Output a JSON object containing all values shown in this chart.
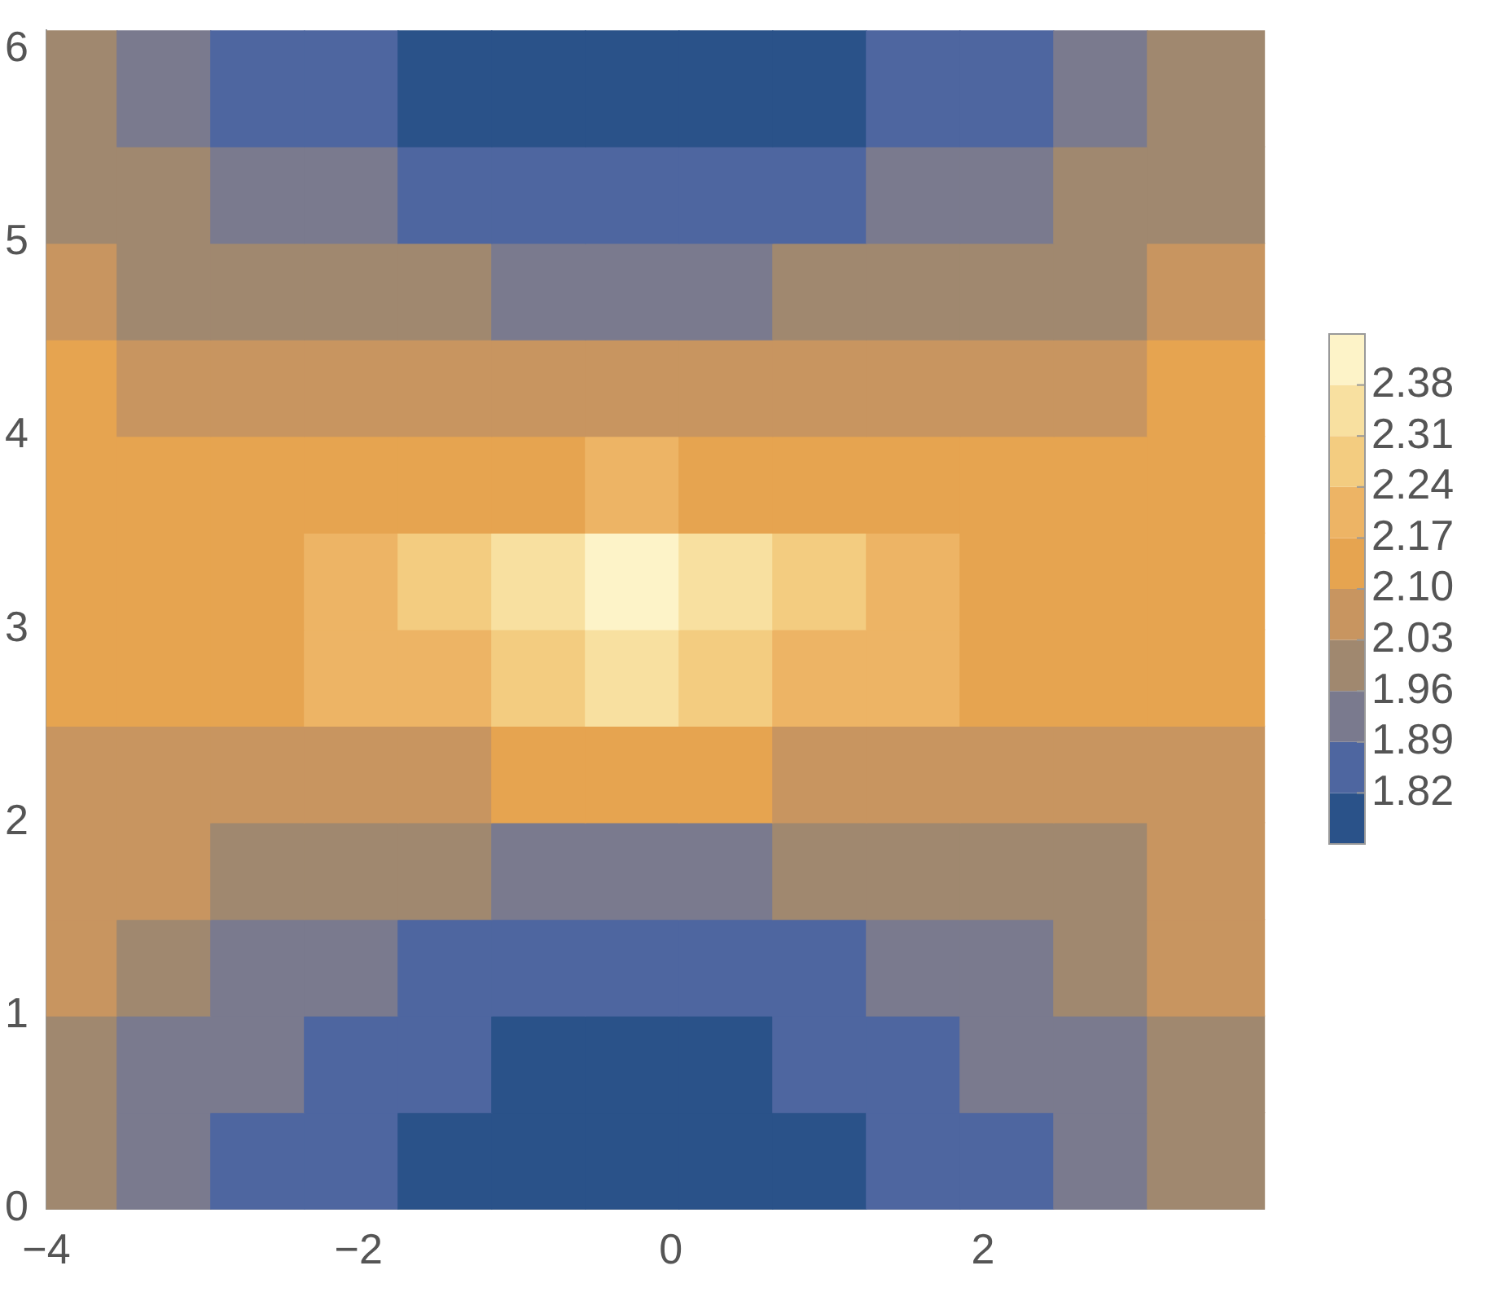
{
  "chart_data": {
    "type": "heatmap",
    "x": [
      -3.85,
      -3.25,
      -2.65,
      -2.05,
      -1.45,
      -0.85,
      -0.25,
      0.35,
      0.95,
      1.55,
      2.15,
      2.75,
      3.35
    ],
    "y": [
      0.25,
      0.75,
      1.25,
      1.75,
      2.25,
      2.75,
      3.25,
      3.75,
      4.25,
      4.75,
      5.25,
      5.75
    ],
    "xlim": [
      -4,
      3.8
    ],
    "xticks": [
      -4,
      -2,
      0,
      2
    ],
    "ylim": [
      0,
      6.1
    ],
    "yticks": [
      0,
      1,
      2,
      3,
      4,
      5,
      6
    ],
    "cells": [
      [
        2.0,
        1.93,
        1.86,
        1.86,
        1.79,
        1.78,
        1.77,
        1.78,
        1.8,
        1.86,
        1.86,
        1.93,
        2.0
      ],
      [
        2.0,
        1.95,
        1.93,
        1.87,
        1.85,
        1.8,
        1.79,
        1.8,
        1.84,
        1.87,
        1.92,
        1.95,
        2.02
      ],
      [
        2.04,
        2.0,
        1.95,
        1.9,
        1.87,
        1.86,
        1.86,
        1.86,
        1.87,
        1.89,
        1.93,
        1.97,
        2.03
      ],
      [
        2.05,
        2.03,
        2.0,
        1.97,
        1.96,
        1.95,
        1.95,
        1.95,
        1.96,
        1.97,
        2.0,
        2.02,
        2.05
      ],
      [
        2.08,
        2.09,
        2.08,
        2.08,
        2.09,
        2.1,
        2.1,
        2.1,
        2.09,
        2.08,
        2.08,
        2.09,
        2.09
      ],
      [
        2.13,
        2.13,
        2.14,
        2.17,
        2.22,
        2.3,
        2.36,
        2.29,
        2.22,
        2.17,
        2.14,
        2.13,
        2.13
      ],
      [
        2.13,
        2.14,
        2.15,
        2.18,
        2.24,
        2.35,
        2.41,
        2.34,
        2.24,
        2.18,
        2.14,
        2.14,
        2.14
      ],
      [
        2.12,
        2.13,
        2.13,
        2.14,
        2.15,
        2.16,
        2.17,
        2.16,
        2.15,
        2.14,
        2.13,
        2.13,
        2.13
      ],
      [
        2.1,
        2.08,
        2.07,
        2.07,
        2.08,
        2.09,
        2.09,
        2.08,
        2.08,
        2.07,
        2.07,
        2.08,
        2.11
      ],
      [
        2.05,
        2.02,
        2.0,
        1.98,
        1.96,
        1.95,
        1.95,
        1.95,
        1.96,
        1.98,
        2.0,
        2.02,
        2.04
      ],
      [
        2.0,
        1.96,
        1.92,
        1.9,
        1.87,
        1.86,
        1.86,
        1.86,
        1.87,
        1.9,
        1.93,
        1.97,
        2.0
      ],
      [
        1.98,
        1.93,
        1.88,
        1.86,
        1.81,
        1.79,
        1.78,
        1.79,
        1.81,
        1.86,
        1.88,
        1.93,
        1.98
      ]
    ],
    "clim": [
      1.75,
      2.45
    ],
    "cticks": [
      1.82,
      1.89,
      1.96,
      2.03,
      {
        "value": 2.1,
        "label": "2.10"
      },
      2.17,
      2.24,
      2.31,
      2.38
    ],
    "colors": [
      "#2a5289",
      "#4e66a0",
      "#7a7a8e",
      "#a0886f",
      "#c89560",
      "#e6a450",
      "#edb465",
      "#f3cc80",
      "#f8e0a0",
      "#fdf3c8"
    ],
    "grid": false
  }
}
